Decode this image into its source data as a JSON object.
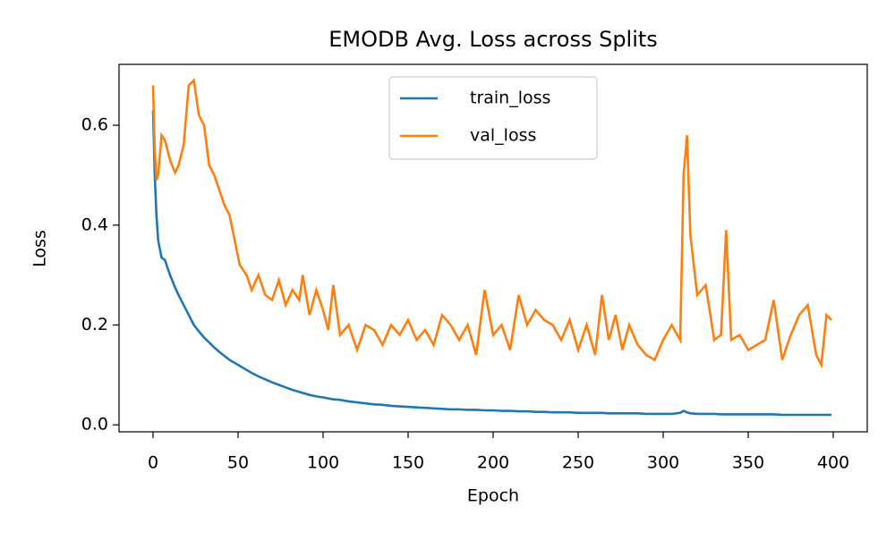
{
  "chart_data": {
    "type": "line",
    "title": "EMODB Avg. Loss across Splits",
    "x_label": "Epoch",
    "y_label": "Loss",
    "x": [
      0,
      1,
      2,
      3,
      5,
      7,
      10,
      13,
      15,
      18,
      21,
      24,
      27,
      30,
      33,
      36,
      39,
      42,
      45,
      48,
      51,
      55,
      58,
      62,
      66,
      70,
      74,
      78,
      82,
      86,
      88,
      92,
      96,
      100,
      103,
      106,
      110,
      115,
      120,
      125,
      130,
      135,
      140,
      145,
      150,
      155,
      160,
      165,
      170,
      175,
      180,
      185,
      190,
      195,
      200,
      205,
      210,
      215,
      220,
      225,
      230,
      235,
      240,
      245,
      250,
      255,
      260,
      264,
      268,
      272,
      276,
      280,
      285,
      290,
      295,
      300,
      305,
      310,
      312,
      314,
      316,
      320,
      325,
      330,
      334,
      337,
      340,
      345,
      350,
      355,
      360,
      365,
      370,
      375,
      380,
      385,
      390,
      393,
      396,
      399
    ],
    "series": [
      {
        "name": "train_loss",
        "color": "#1f77b4",
        "values": [
          0.63,
          0.5,
          0.42,
          0.37,
          0.335,
          0.33,
          0.3,
          0.275,
          0.26,
          0.24,
          0.22,
          0.2,
          0.187,
          0.175,
          0.165,
          0.155,
          0.146,
          0.138,
          0.13,
          0.124,
          0.118,
          0.11,
          0.104,
          0.097,
          0.091,
          0.085,
          0.08,
          0.075,
          0.07,
          0.066,
          0.064,
          0.06,
          0.057,
          0.055,
          0.053,
          0.051,
          0.05,
          0.047,
          0.045,
          0.043,
          0.041,
          0.04,
          0.038,
          0.037,
          0.036,
          0.035,
          0.034,
          0.033,
          0.032,
          0.031,
          0.031,
          0.03,
          0.03,
          0.029,
          0.029,
          0.028,
          0.028,
          0.027,
          0.027,
          0.026,
          0.026,
          0.025,
          0.025,
          0.025,
          0.024,
          0.024,
          0.024,
          0.024,
          0.023,
          0.023,
          0.023,
          0.023,
          0.023,
          0.022,
          0.022,
          0.022,
          0.022,
          0.024,
          0.028,
          0.025,
          0.023,
          0.022,
          0.022,
          0.022,
          0.021,
          0.021,
          0.021,
          0.021,
          0.021,
          0.021,
          0.021,
          0.021,
          0.02,
          0.02,
          0.02,
          0.02,
          0.02,
          0.02,
          0.02,
          0.02
        ]
      },
      {
        "name": "val_loss",
        "color": "#ff7f0e",
        "values": [
          0.68,
          0.55,
          0.49,
          0.5,
          0.58,
          0.57,
          0.53,
          0.505,
          0.52,
          0.56,
          0.68,
          0.69,
          0.62,
          0.6,
          0.52,
          0.5,
          0.47,
          0.44,
          0.42,
          0.37,
          0.32,
          0.3,
          0.27,
          0.3,
          0.26,
          0.25,
          0.29,
          0.24,
          0.27,
          0.25,
          0.3,
          0.22,
          0.27,
          0.23,
          0.19,
          0.28,
          0.18,
          0.2,
          0.15,
          0.2,
          0.19,
          0.16,
          0.2,
          0.18,
          0.21,
          0.17,
          0.19,
          0.16,
          0.22,
          0.2,
          0.17,
          0.2,
          0.14,
          0.27,
          0.18,
          0.2,
          0.15,
          0.26,
          0.2,
          0.23,
          0.21,
          0.2,
          0.17,
          0.21,
          0.15,
          0.2,
          0.14,
          0.26,
          0.17,
          0.22,
          0.15,
          0.2,
          0.16,
          0.14,
          0.13,
          0.17,
          0.2,
          0.17,
          0.5,
          0.58,
          0.38,
          0.26,
          0.28,
          0.17,
          0.18,
          0.39,
          0.17,
          0.18,
          0.15,
          0.16,
          0.17,
          0.25,
          0.13,
          0.18,
          0.22,
          0.24,
          0.14,
          0.12,
          0.22,
          0.21
        ]
      }
    ],
    "xlim": [
      -20,
      420
    ],
    "ylim": [
      -0.014,
      0.722
    ],
    "xticks": [
      0,
      50,
      100,
      150,
      200,
      250,
      300,
      350,
      400
    ],
    "yticks": [
      {
        "value": 0,
        "label": "0.0"
      },
      0.2,
      0.4,
      0.6
    ],
    "legend": "upper center"
  }
}
